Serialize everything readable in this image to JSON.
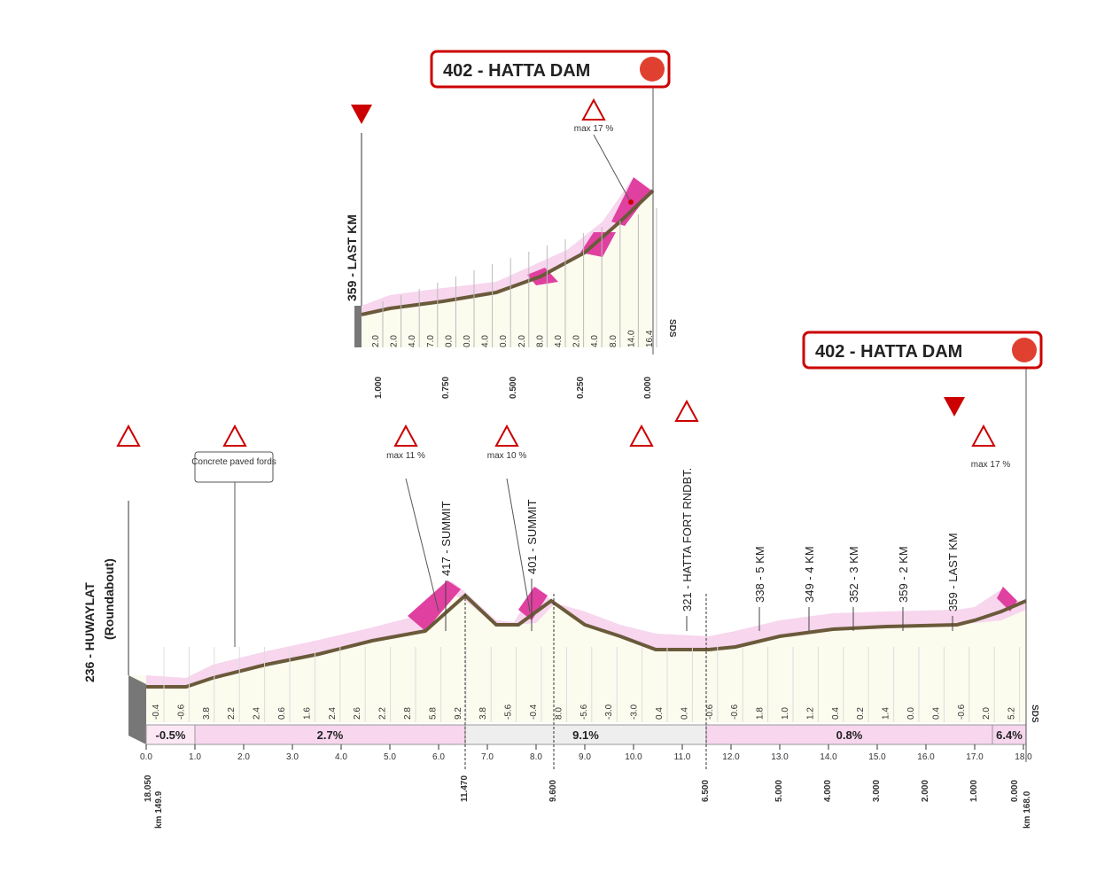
{
  "inset": {
    "start": "359 - LAST KM",
    "finish": "402 - HATTA DAM",
    "max_note": "max 17 %",
    "gradients": [
      "2.0",
      "2.0",
      "4.0",
      "7.0",
      "0.0",
      "0.0",
      "4.0",
      "0.0",
      "2.0",
      "8.0",
      "4.0",
      "2.0",
      "4.0",
      "8.0",
      "14.0",
      "16.4"
    ],
    "distances": [
      "1.000",
      "0.750",
      "0.500",
      "0.250",
      "0.000"
    ],
    "sds": "SDS"
  },
  "main": {
    "start": "236 - HUWAYLAT",
    "start_note": "(Roundabout)",
    "finish": "402 - HATTA DAM",
    "fords_note": "Concrete paved fords",
    "landmarks": [
      "417 - SUMMIT",
      "401 - SUMMIT",
      "321 - HATTA FORT RNDBT.",
      "338 - 5 KM",
      "349 - 4 KM",
      "352 - 3 KM",
      "359 - 2 KM",
      "359 - LAST KM"
    ],
    "max_notes": [
      "max 11 %",
      "max 10 %",
      "max 17 %"
    ],
    "gradients": [
      "-0.4",
      "-0.6",
      "3.8",
      "2.2",
      "2.4",
      "0.6",
      "1.6",
      "2.4",
      "2.6",
      "2.2",
      "2.8",
      "5.8",
      "9.2",
      "3.8",
      "-5.6",
      "-0.4",
      "8.0",
      "-5.6",
      "-3.0",
      "-3.0",
      "0.4",
      "0.4",
      "-0.6",
      "-0.6",
      "1.8",
      "1.0",
      "1.2",
      "0.4",
      "0.2",
      "1.4",
      "0.0",
      "0.4",
      "-0.6",
      "2.0",
      "5.2"
    ],
    "sections": [
      "-0.5%",
      "2.7%",
      "9.1%",
      "0.8%",
      "6.4%"
    ],
    "km_ticks": [
      "0.0",
      "1.0",
      "2.0",
      "3.0",
      "4.0",
      "5.0",
      "6.0",
      "7.0",
      "8.0",
      "9.0",
      "10.0",
      "11.0",
      "12.0",
      "13.0",
      "14.0",
      "15.0",
      "16.0",
      "17.0",
      "18.0"
    ],
    "bottom_labels": [
      "18.050",
      "km 149.9",
      "11.470",
      "9.600",
      "6.500",
      "5.000",
      "4.000",
      "3.000",
      "2.000",
      "1.000",
      "0.000",
      "km 168.0"
    ],
    "sds": "SDS"
  }
}
